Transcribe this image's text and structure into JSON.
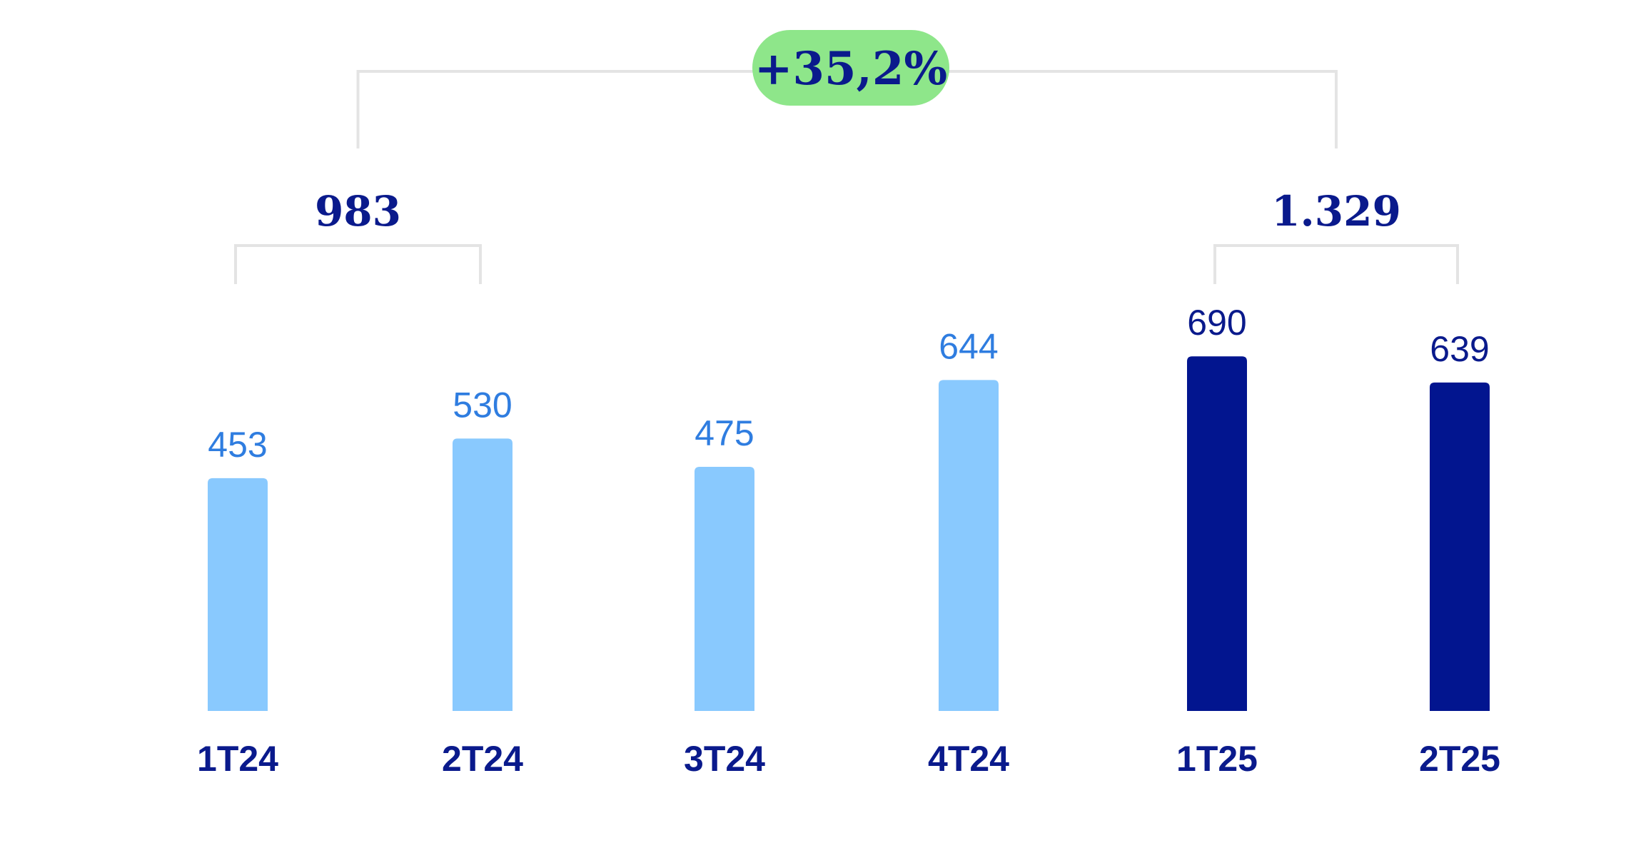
{
  "chart_data": {
    "type": "bar",
    "categories": [
      "1T24",
      "2T24",
      "3T24",
      "4T24",
      "1T25",
      "2T25"
    ],
    "values": [
      453,
      530,
      475,
      644,
      690,
      639
    ],
    "value_labels": [
      "453",
      "530",
      "475",
      "644",
      "690",
      "639"
    ],
    "bar_colors": [
      "#89c9fe",
      "#89c9fe",
      "#89c9fe",
      "#89c9fe",
      "#02158f",
      "#02158f"
    ],
    "label_colors": [
      "#2f7de0",
      "#2f7de0",
      "#2f7de0",
      "#2f7de0",
      "#0a1a8c",
      "#0a1a8c"
    ],
    "ylim": [
      0,
      800
    ],
    "grid": false,
    "groups": [
      {
        "label": "983",
        "from": 0,
        "to": 1
      },
      {
        "label": "1.329",
        "from": 4,
        "to": 5
      }
    ],
    "comparison": {
      "label": "+35,2%",
      "color": "#8ee68a"
    },
    "title": "",
    "xlabel": "",
    "ylabel": ""
  }
}
